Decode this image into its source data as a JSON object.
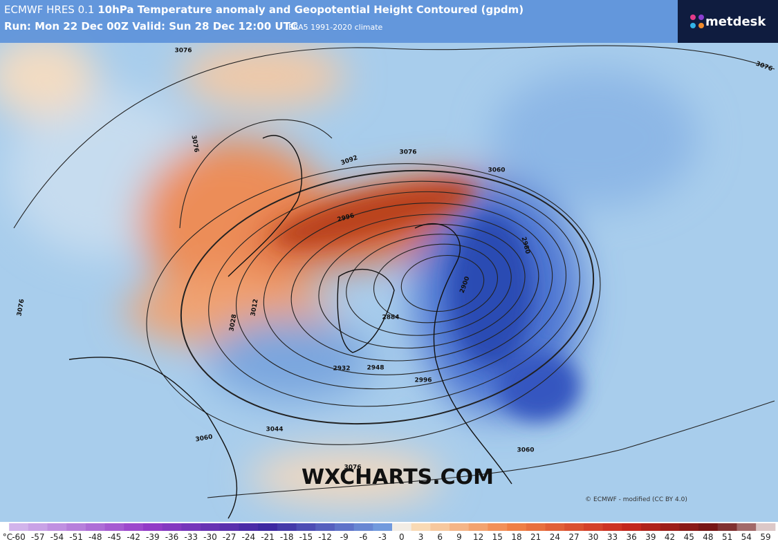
{
  "header": {
    "model": "ECMWF HRES 0.1",
    "title": "10hPa Temperature anomaly and Geopotential Height Contoured (gpdm)",
    "run": "Run: Mon 22 Dec 00Z Valid: Sun 28 Dec 12:00 UTC",
    "climate": "ERA5 1991-2020 climate",
    "logo": "metdesk"
  },
  "contour_labels": [
    3076,
    3076,
    3092,
    3076,
    3060,
    2996,
    2980,
    2900,
    3012,
    3028,
    2884,
    2932,
    2948,
    2996,
    3044,
    3060,
    3060,
    3076,
    3076,
    3076
  ],
  "watermark": "WXCHARTS.COM",
  "credit": "© ECMWF - modified (CC BY 4.0)",
  "colorbar": {
    "unit": "°C",
    "ticks": [
      -60,
      -57,
      -54,
      -51,
      -48,
      -45,
      -42,
      -39,
      -36,
      -33,
      -30,
      -27,
      -24,
      -21,
      -18,
      -15,
      -12,
      -9,
      -6,
      -3,
      0,
      3,
      6,
      9,
      12,
      15,
      18,
      21,
      24,
      27,
      30,
      33,
      36,
      39,
      42,
      45,
      48,
      51,
      54,
      59
    ]
  }
}
